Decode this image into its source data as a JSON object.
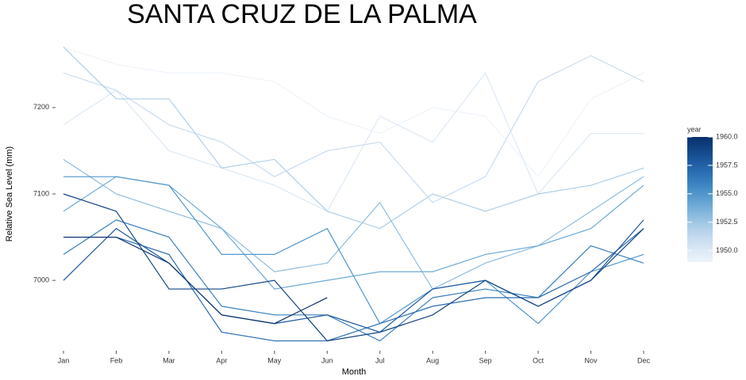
{
  "chart_data": {
    "type": "line",
    "title": "SANTA CRUZ DE LA PALMA",
    "x_label": "Month",
    "y_label": "Relative Sea Level (mm)",
    "categories": [
      "Jan",
      "Feb",
      "Mar",
      "Apr",
      "May",
      "Jun",
      "Jul",
      "Aug",
      "Sep",
      "Oct",
      "Nov",
      "Dec"
    ],
    "ylim": [
      6925,
      7275
    ],
    "yticks": [
      7000,
      7100,
      7200
    ],
    "series": [
      {
        "name": "1949",
        "color": "#eef4fb",
        "values": [
          7270,
          7250,
          7240,
          7240,
          7230,
          7190,
          7170,
          7200,
          7190,
          7120,
          7210,
          7240
        ]
      },
      {
        "name": "1950",
        "color": "#dde9f6",
        "values": [
          7180,
          7220,
          7150,
          7130,
          7110,
          7080,
          7190,
          7160,
          7240,
          7100,
          7170,
          7170
        ]
      },
      {
        "name": "1951",
        "color": "#c9dcf0",
        "values": [
          7240,
          7220,
          7180,
          7160,
          7120,
          7150,
          7160,
          7090,
          7120,
          7230,
          7260,
          7230
        ]
      },
      {
        "name": "1952",
        "color": "#afcfe8",
        "values": [
          7270,
          7210,
          7210,
          7130,
          7140,
          7080,
          7060,
          7100,
          7080,
          7100,
          7110,
          7130
        ]
      },
      {
        "name": "1953",
        "color": "#8fbddf",
        "values": [
          7140,
          7100,
          7080,
          7060,
          7010,
          7020,
          7090,
          6990,
          7020,
          7040,
          7080,
          7120
        ]
      },
      {
        "name": "1954",
        "color": "#6eaad6",
        "values": [
          7080,
          7120,
          7110,
          7060,
          6990,
          7000,
          7010,
          7010,
          7030,
          7040,
          7060,
          7110
        ]
      },
      {
        "name": "1955",
        "color": "#5196cb",
        "values": [
          7120,
          7120,
          7110,
          7030,
          7030,
          7060,
          6950,
          6990,
          7000,
          6950,
          7010,
          7030
        ]
      },
      {
        "name": "1956",
        "color": "#3a80bf",
        "values": [
          7030,
          7070,
          7050,
          6970,
          6960,
          6960,
          6930,
          6980,
          6990,
          6980,
          7040,
          7020
        ]
      },
      {
        "name": "1957",
        "color": "#2a6bb0",
        "values": [
          7050,
          7050,
          7030,
          6940,
          6930,
          6930,
          6950,
          6970,
          6980,
          6980,
          7010,
          7060
        ]
      },
      {
        "name": "1958",
        "color": "#1c579c",
        "values": [
          7000,
          7060,
          7020,
          6960,
          6950,
          6960,
          6940,
          6990,
          7000,
          6970,
          7000,
          7070
        ]
      },
      {
        "name": "1959",
        "color": "#114384",
        "values": [
          7100,
          7080,
          6990,
          6990,
          7000,
          6930,
          6940,
          6960,
          7000,
          6970,
          7000,
          7060
        ]
      },
      {
        "name": "1960",
        "color": "#08306b",
        "values": [
          7050,
          7050,
          7020,
          6960,
          6950,
          6980,
          null,
          null,
          null,
          null,
          null,
          null
        ]
      }
    ],
    "legend": {
      "title": "year",
      "range": [
        1949,
        1960
      ],
      "ticks": [
        {
          "value": 1950,
          "label": "1950.0"
        },
        {
          "value": 1952.5,
          "label": "1952.5"
        },
        {
          "value": 1955,
          "label": "1955.0"
        },
        {
          "value": 1957.5,
          "label": "1957.5"
        },
        {
          "value": 1960,
          "label": "1960.0"
        }
      ]
    }
  }
}
